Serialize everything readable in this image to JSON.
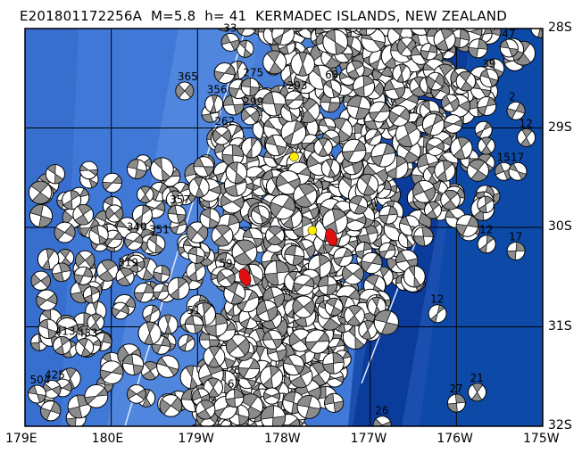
{
  "title": "E201801172256A  M=5.8  h= 41  KERMADEC ISLANDS, NEW ZEALAND",
  "map": {
    "lon_range": [
      179,
      -175
    ],
    "lat_range": [
      -28,
      -32
    ],
    "x_ticks": [
      "179E",
      "180E",
      "179W",
      "178W",
      "177W",
      "176W",
      "175W"
    ],
    "y_ticks": [
      "28S",
      "29S",
      "30S",
      "31S",
      "32S"
    ],
    "grid": true,
    "colors": {
      "ocean": "#3f78d6",
      "ridge": "#5e92e4",
      "trench": "#0b3c9c",
      "compression": "#8c8c8c",
      "dilatation": "#ffffff",
      "event": "#e01010",
      "station": "#ffee00"
    },
    "main_events": [
      {
        "lon": -178.45,
        "lat": -30.5,
        "color": "#e01010"
      },
      {
        "lon": -177.45,
        "lat": -30.1,
        "color": "#e01010"
      }
    ],
    "markers": [
      {
        "lon": -177.67,
        "lat": -30.03,
        "color": "#ffee00"
      },
      {
        "lon": -177.88,
        "lat": -29.29,
        "color": "#ffee00"
      }
    ],
    "labeled_events": [
      {
        "label": "365",
        "lon": -179.15,
        "lat": -28.52
      },
      {
        "label": "356",
        "lon": -178.81,
        "lat": -28.65
      },
      {
        "label": "33",
        "lon": -178.62,
        "lat": -28.03
      },
      {
        "label": "275",
        "lon": -178.39,
        "lat": -28.48
      },
      {
        "label": "299",
        "lon": -178.39,
        "lat": -28.77
      },
      {
        "label": "262",
        "lon": -178.72,
        "lat": -28.97
      },
      {
        "label": "293",
        "lon": -177.88,
        "lat": -28.61
      },
      {
        "label": "63",
        "lon": -177.44,
        "lat": -28.5
      },
      {
        "label": "340",
        "lon": -179.74,
        "lat": -30.03
      },
      {
        "label": "351",
        "lon": -179.48,
        "lat": -30.06
      },
      {
        "label": "357",
        "lon": -179.24,
        "lat": -29.76
      },
      {
        "label": "319",
        "lon": -179.84,
        "lat": -30.39
      },
      {
        "label": "413",
        "lon": 179.43,
        "lat": -31.08
      },
      {
        "label": "433",
        "lon": 179.69,
        "lat": -31.1
      },
      {
        "label": "425",
        "lon": 179.31,
        "lat": -31.52
      },
      {
        "label": "504",
        "lon": 179.14,
        "lat": -31.57
      },
      {
        "label": "51",
        "lon": -179.04,
        "lat": -30.87
      },
      {
        "label": "59",
        "lon": -178.67,
        "lat": -30.4
      },
      {
        "label": "15",
        "lon": -175.45,
        "lat": -29.33
      },
      {
        "label": "17",
        "lon": -175.29,
        "lat": -29.33
      },
      {
        "label": "12",
        "lon": -175.19,
        "lat": -28.99
      },
      {
        "label": "12",
        "lon": -175.65,
        "lat": -30.06
      },
      {
        "label": "17",
        "lon": -175.31,
        "lat": -30.13
      },
      {
        "label": "21",
        "lon": -175.76,
        "lat": -31.55
      },
      {
        "label": "27",
        "lon": -176.0,
        "lat": -31.66
      },
      {
        "label": "26",
        "lon": -176.86,
        "lat": -31.88
      },
      {
        "label": "39",
        "lon": -175.62,
        "lat": -28.39
      },
      {
        "label": "47",
        "lon": -175.39,
        "lat": -28.09
      },
      {
        "label": "2",
        "lon": -175.31,
        "lat": -28.72
      },
      {
        "label": "12",
        "lon": -176.22,
        "lat": -30.76
      },
      {
        "label": "67",
        "lon": -178.57,
        "lat": -31.61
      }
    ]
  }
}
